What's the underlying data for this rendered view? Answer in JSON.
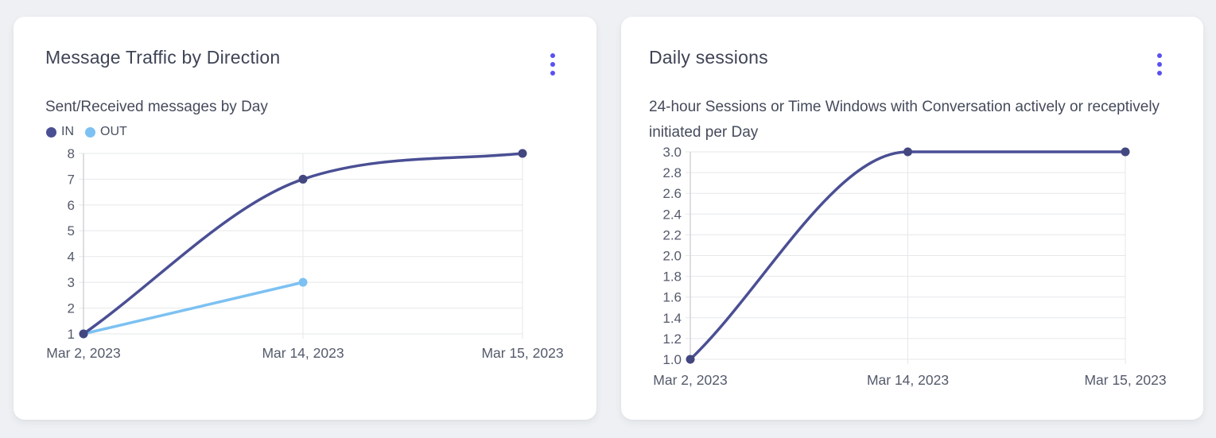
{
  "page": {
    "background": "#eef0f3",
    "card_background": "#ffffff"
  },
  "menu_icon_color": "#5b50f0",
  "cards": [
    {
      "title": "Message Traffic by Direction",
      "subtitle": "Sent/Received messages by Day"
    },
    {
      "title": "Daily sessions",
      "subtitle": "24-hour Sessions or Time Windows with Conversation actively or receptively initiated per Day"
    }
  ],
  "chart_data": [
    {
      "type": "line",
      "title": "Message Traffic by Direction",
      "subtitle": "Sent/Received messages by Day",
      "categories": [
        "Mar 2, 2023",
        "Mar 14, 2023",
        "Mar 15, 2023"
      ],
      "series": [
        {
          "name": "IN",
          "values": [
            1,
            7,
            8
          ],
          "color": "#4a4f94",
          "point_color": "#424780"
        },
        {
          "name": "OUT",
          "values": [
            1,
            3,
            null
          ],
          "color": "#7cc1f2",
          "point_color": "#7cc1f2"
        }
      ],
      "ylim": [
        1,
        8
      ],
      "yticks": [
        8,
        7,
        6,
        5,
        4,
        3,
        2,
        1
      ],
      "ytick_labels": [
        "8",
        "7",
        "6",
        "5",
        "4",
        "3",
        "2",
        "1"
      ],
      "legend": [
        "IN",
        "OUT"
      ],
      "legend_position": "top-left",
      "grid": true,
      "smooth": true,
      "grid_color": "#e6e7ea",
      "axis_color": "#d2d3d8",
      "tick_color": "#545a6b"
    },
    {
      "type": "line",
      "title": "Daily sessions",
      "subtitle": "24-hour Sessions or Time Windows with Conversation actively or receptively initiated per Day",
      "categories": [
        "Mar 2, 2023",
        "Mar 14, 2023",
        "Mar 15, 2023"
      ],
      "series": [
        {
          "name": "Daily sessions",
          "values": [
            1.0,
            3.0,
            3.0
          ],
          "color": "#4a4f94",
          "point_color": "#424780"
        }
      ],
      "ylim": [
        1.0,
        3.0
      ],
      "yticks": [
        3.0,
        2.8,
        2.6,
        2.4,
        2.2,
        2.0,
        1.8,
        1.6,
        1.4,
        1.2,
        1.0
      ],
      "ytick_labels": [
        "3.0",
        "2.8",
        "2.6",
        "2.4",
        "2.2",
        "2.0",
        "1.8",
        "1.6",
        "1.4",
        "1.2",
        "1.0"
      ],
      "legend_position": "none",
      "grid": true,
      "smooth": true,
      "grid_color": "#e6e7ea",
      "axis_color": "#d2d3d8",
      "tick_color": "#545a6b"
    }
  ]
}
